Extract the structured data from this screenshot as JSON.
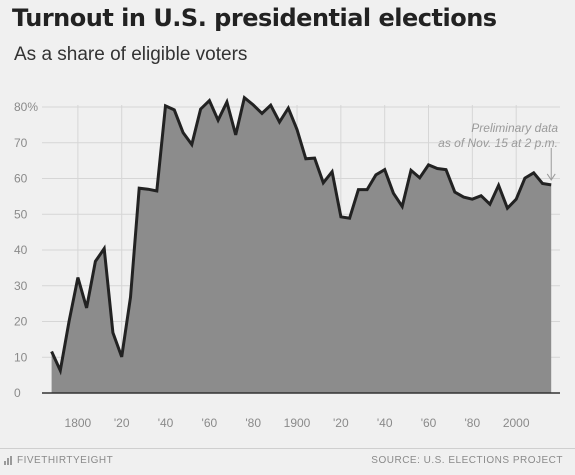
{
  "header": {
    "title": "Turnout in U.S. presidential elections",
    "subtitle": "As a share of eligible voters"
  },
  "footer": {
    "brand": "FIVETHIRTYEIGHT",
    "brand_icon": "bar-chart-icon",
    "source": "SOURCE: U.S. ELECTIONS PROJECT"
  },
  "chart_data": {
    "type": "area",
    "title": "Turnout in U.S. presidential elections",
    "subtitle": "As a share of eligible voters",
    "xlabel": "",
    "ylabel": "",
    "xlim": [
      1785,
      2020
    ],
    "ylim": [
      0,
      85
    ],
    "grid": true,
    "fill_color": "#8c8c8c",
    "line_color": "#222222",
    "y_ticks": [
      0,
      10,
      20,
      30,
      40,
      50,
      60,
      70,
      80
    ],
    "y_tick_labels": [
      "0",
      "10",
      "20",
      "30",
      "40",
      "50",
      "60",
      "70",
      "80%"
    ],
    "x_ticks": [
      1800,
      1820,
      1840,
      1860,
      1880,
      1900,
      1920,
      1940,
      1960,
      1980,
      2000
    ],
    "x_tick_labels": [
      "1800",
      "'20",
      "'40",
      "'60",
      "'80",
      "1900",
      "'20",
      "'40",
      "'60",
      "'80",
      "2000"
    ],
    "annotation": {
      "lines": [
        "Preliminary data",
        "as of Nov. 15 at 2 p.m."
      ],
      "x": 2016,
      "y": 58.2
    },
    "series": [
      {
        "x": [
          1788,
          1792,
          1796,
          1800,
          1804,
          1808,
          1812,
          1816,
          1820,
          1824,
          1828,
          1832,
          1836,
          1840,
          1844,
          1848,
          1852,
          1856,
          1860,
          1864,
          1868,
          1872,
          1876,
          1880,
          1884,
          1888,
          1892,
          1896,
          1900,
          1904,
          1908,
          1912,
          1916,
          1920,
          1924,
          1928,
          1932,
          1936,
          1940,
          1944,
          1948,
          1952,
          1956,
          1960,
          1964,
          1968,
          1972,
          1976,
          1980,
          1984,
          1988,
          1992,
          1996,
          2000,
          2004,
          2008,
          2012,
          2016
        ],
        "values": [
          11.6,
          6.3,
          20.1,
          32.3,
          23.8,
          36.8,
          40.4,
          16.9,
          10.1,
          26.8,
          57.3,
          57.0,
          56.5,
          80.3,
          79.2,
          72.8,
          69.5,
          79.4,
          81.8,
          76.3,
          81.4,
          72.2,
          82.6,
          80.6,
          78.2,
          80.5,
          75.8,
          79.7,
          73.7,
          65.5,
          65.7,
          58.8,
          61.9,
          49.3,
          48.9,
          56.9,
          56.9,
          61.0,
          62.5,
          55.9,
          52.2,
          62.3,
          60.2,
          63.8,
          62.8,
          62.5,
          56.2,
          54.8,
          54.2,
          55.2,
          52.8,
          58.1,
          51.7,
          54.2,
          60.1,
          61.6,
          58.6,
          58.2
        ]
      }
    ]
  }
}
